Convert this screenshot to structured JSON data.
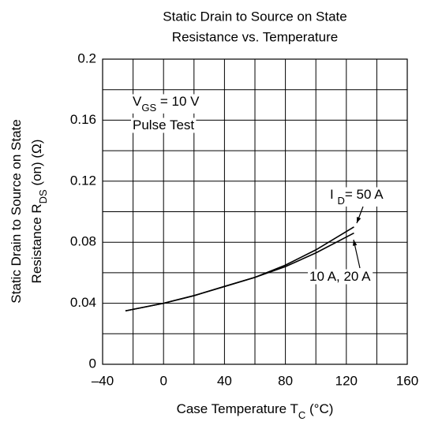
{
  "chart_data": {
    "type": "line",
    "title": [
      "Static Drain to Source on State",
      "Resistance vs. Temperature"
    ],
    "xlabel": [
      "Case Temperature T",
      "C",
      " (°C)"
    ],
    "ylabel": [
      [
        "Static Drain to Source on State"
      ],
      [
        "Resistance  R",
        "DS",
        "  (on) (Ω)"
      ]
    ],
    "x": [
      -25,
      0,
      20,
      40,
      60,
      80,
      100,
      125
    ],
    "series": [
      {
        "label": [
          "I ",
          "D",
          "= 50 A"
        ],
        "color": "#000000",
        "values": [
          0.035,
          0.04,
          0.045,
          0.051,
          0.057,
          0.065,
          0.075,
          0.09
        ]
      },
      {
        "label": [
          "10 A, 20 A"
        ],
        "color": "#000000",
        "values": [
          0.035,
          0.04,
          0.045,
          0.051,
          0.057,
          0.064,
          0.073,
          0.086
        ]
      }
    ],
    "annotations": [
      [
        "V",
        "GS",
        " = 10 V"
      ],
      [
        "Pulse Test"
      ]
    ],
    "xlim": [
      -40,
      160
    ],
    "xticks": [
      {
        "value": -40,
        "label": "–40"
      },
      0,
      40,
      80,
      120,
      160
    ],
    "ylim": [
      0,
      0.2
    ],
    "yticks": [
      0,
      0.04,
      0.08,
      0.12,
      0.16,
      0.2
    ],
    "xgrid": [
      -20,
      20,
      60,
      100,
      140
    ],
    "ygrid": [
      0.02,
      0.06,
      0.1,
      0.14,
      0.18
    ],
    "grid": true
  }
}
